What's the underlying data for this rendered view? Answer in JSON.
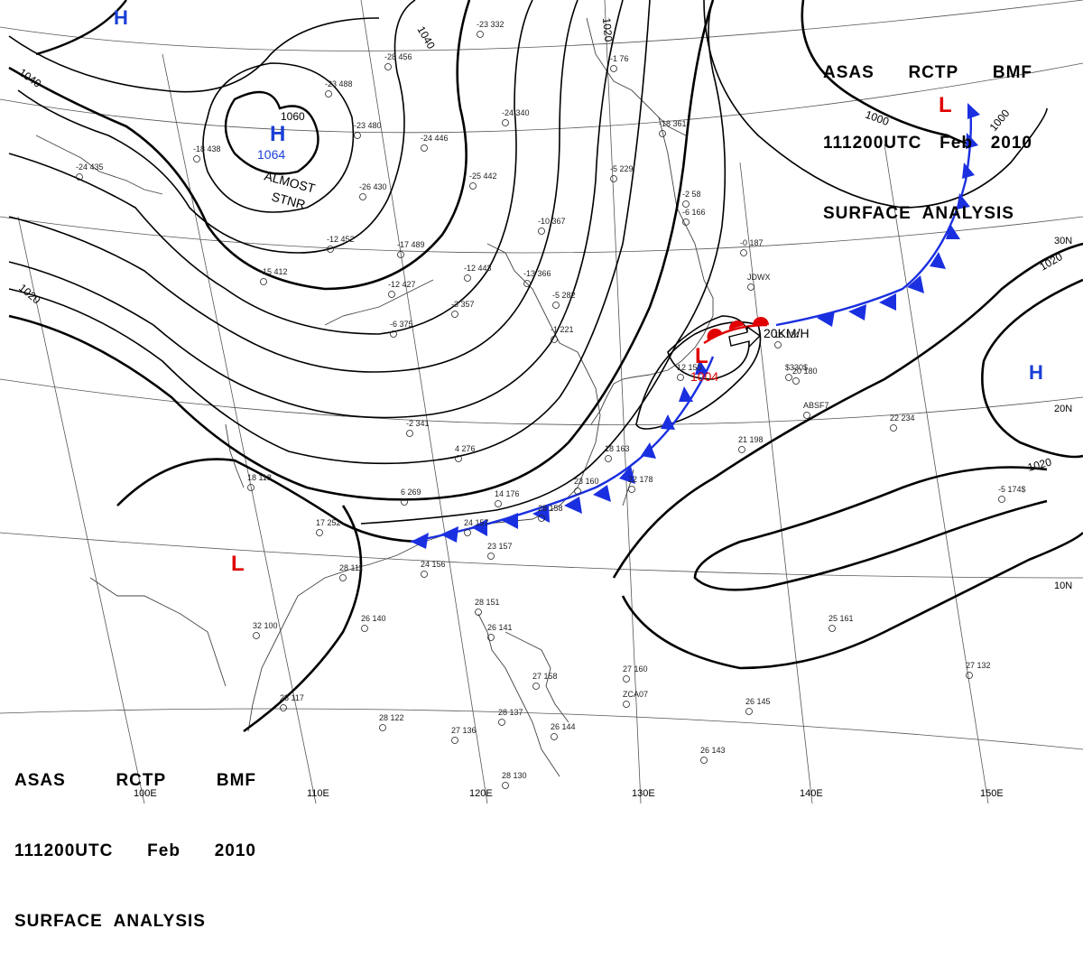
{
  "header": {
    "line1": [
      "ASAS",
      "RCTP",
      "BMF"
    ],
    "line2": [
      "111200UTC",
      "Feb",
      "2010"
    ],
    "line3": "SURFACE  ANALYSIS"
  },
  "colors": {
    "high": "#1a3fd6",
    "low": "#e00000",
    "isobar": "#000000",
    "cold_front": "#1a2fe0",
    "warm_front": "#e00000",
    "grid": "#555555",
    "coast": "#444444"
  },
  "centers": {
    "h_nw": "H",
    "h_main": "H",
    "h_main_value": "1064",
    "h_main_note1": "ALMOST",
    "h_main_note2": "STNR",
    "h_east": "H",
    "l_japan": "L",
    "l_japan_value": "1004",
    "l_ne": "L",
    "l_sw": "L",
    "motion": "20KM/H"
  },
  "isobar_labels": {
    "i1040_w": "1040",
    "i1040_n": "1040",
    "i1060": "1060",
    "i1020_w": "1020",
    "i1020_n": "1020",
    "i1000_a": "1000",
    "i1000_b": "1000",
    "i1020_e": "1020",
    "i1020_se": "1020"
  },
  "grid_labels": {
    "lon_100": "100E",
    "lon_110": "110E",
    "lon_120": "120E",
    "lon_130": "130E",
    "lon_140": "140E",
    "lon_150": "150E",
    "lat_30": "30N",
    "lat_20": "20N",
    "lat_10": "10N"
  },
  "stations": {
    "s01": "-28 456",
    "s02": "-23 332",
    "s03": "-24 340",
    "s04": "-23 488",
    "s05": "-23 480",
    "s06": "-24 446",
    "s07": "-26 430",
    "s08": "-25 442",
    "s09": "-10 367",
    "s10": "-17 489",
    "s11": "-12 452",
    "s12": "-12 427",
    "s13": "-12 443",
    "s14": "-13 366",
    "s15": "-6 375",
    "s16": "-3 357",
    "s17": "-5 282",
    "s18": "-1 221",
    "s19": "-2 341",
    "s20": "4 276",
    "s21": "6 269",
    "s22": "14 176",
    "s23": "18 163",
    "s24": "22 178",
    "s25": "23 160",
    "s26": "24 157",
    "s27": "23 157",
    "s28": "24 156",
    "s29": "17 252",
    "s30": "28 111",
    "s31": "26 140",
    "s32": "32 100",
    "s33": "28 151",
    "s34": "26 141",
    "s35": "27 158",
    "s36": "27 160",
    "s37": "28 122",
    "s38": "27 136",
    "s39": "28 137",
    "s40": "28 130",
    "s41": "26 144",
    "s42": "26 145",
    "s43": "26 143",
    "s44": "25 161",
    "s45": "27 132",
    "s46": "21 198",
    "s47": "22 234",
    "s48": "16 124",
    "s49": "20 180",
    "s50": "-0 187",
    "s51": "-2 58",
    "s52": "-5 229",
    "s53": "-1 76",
    "s54": "-18 361",
    "s55": "-15 412",
    "s56": "-18 438",
    "s57": "-24 435",
    "s58": "28 117",
    "s59": "-5 174$",
    "s60": "28 158",
    "s61": "18 118",
    "s62": "12 150",
    "s63": "$330$",
    "s64": "JDWX",
    "s65": "ABSF7",
    "s66": "ZCA07",
    "s67": "-6 166"
  }
}
